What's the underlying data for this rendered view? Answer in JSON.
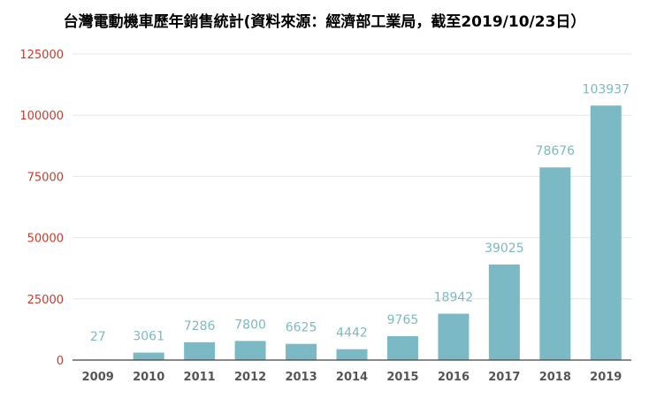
{
  "chart_data": {
    "type": "bar",
    "title": "台灣電動機車歷年銷售統計(資料來源：經濟部工業局，截至2019/10/23日）",
    "xlabel": "",
    "ylabel": "",
    "categories": [
      "2009",
      "2010",
      "2011",
      "2012",
      "2013",
      "2014",
      "2015",
      "2016",
      "2017",
      "2018",
      "2019"
    ],
    "values": [
      27,
      3061,
      7286,
      7800,
      6625,
      4442,
      9765,
      18942,
      39025,
      78676,
      103937
    ],
    "value_labels": [
      "27",
      "3061",
      "7286",
      "7800",
      "6625",
      "4442",
      "9765",
      "18942",
      "39025",
      "78676",
      "103937"
    ],
    "ylim": [
      0,
      125000
    ],
    "yticks": [
      0,
      25000,
      50000,
      75000,
      100000,
      125000
    ],
    "ytick_labels": [
      "0",
      "25000",
      "50000",
      "75000",
      "100000",
      "125000"
    ],
    "grid": true,
    "legend": "none",
    "colors": {
      "bar": "#7bbac4",
      "data_label": "#7bbac4",
      "ytick": "#d0392b",
      "xtick": "#555555",
      "grid": "#e6e6e6",
      "axis": "#444444"
    }
  }
}
